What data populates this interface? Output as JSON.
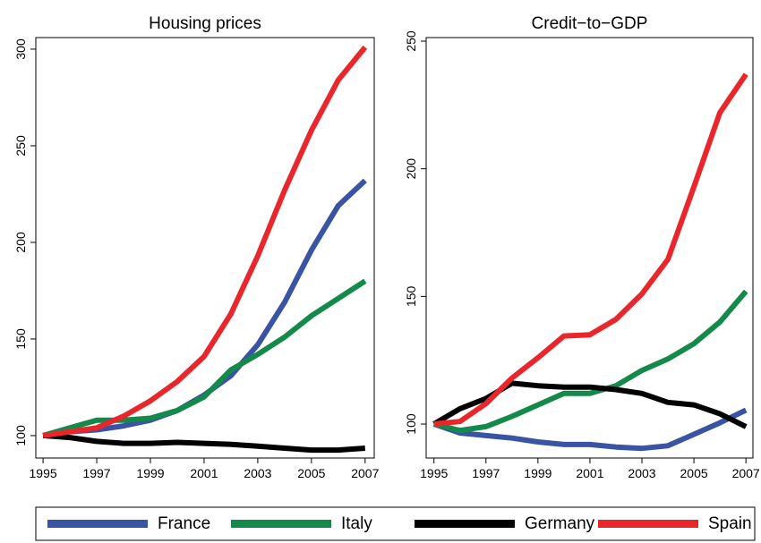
{
  "chart_data": [
    {
      "type": "line",
      "title": "Housing prices",
      "x": [
        1995,
        1996,
        1997,
        1998,
        1999,
        2000,
        2001,
        2002,
        2003,
        2004,
        2005,
        2006,
        2007
      ],
      "xlim": [
        1994.73,
        2007.34
      ],
      "xticks": [
        1995,
        1997,
        1999,
        2001,
        2003,
        2005,
        2007
      ],
      "ylim": [
        88.4,
        306
      ],
      "yticks": [
        100,
        150,
        200,
        250,
        300
      ],
      "series": [
        {
          "name": "France",
          "color": "#3a54a4",
          "values": [
            100,
            102,
            103,
            105,
            108,
            113,
            121,
            131,
            147,
            169,
            196,
            219,
            232
          ]
        },
        {
          "name": "Italy",
          "color": "#138a4a",
          "values": [
            100,
            104,
            108,
            108,
            109,
            113,
            120,
            134,
            142,
            151,
            162,
            171,
            180
          ]
        },
        {
          "name": "Germany",
          "color": "#000000",
          "values": [
            100,
            99,
            97,
            96,
            96,
            96.5,
            96,
            95.5,
            94.5,
            93.5,
            92.5,
            92.5,
            93.5
          ]
        },
        {
          "name": "Spain",
          "color": "#e8262b",
          "values": [
            100,
            102,
            104,
            110,
            118,
            128,
            141,
            163,
            193,
            227,
            258,
            284,
            301
          ]
        }
      ]
    },
    {
      "type": "line",
      "title": "Credit−to−GDP",
      "x": [
        1995,
        1996,
        1997,
        1998,
        1999,
        2000,
        2001,
        2002,
        2003,
        2004,
        2005,
        2006,
        2007
      ],
      "xlim": [
        1994.7,
        2007.27
      ],
      "xticks": [
        1995,
        1997,
        1999,
        2001,
        2003,
        2005,
        2007
      ],
      "ylim": [
        86.7,
        251.4
      ],
      "yticks": [
        100,
        150,
        200,
        250
      ],
      "series": [
        {
          "name": "France",
          "color": "#3a54a4",
          "values": [
            100,
            96.5,
            95.5,
            94.5,
            93,
            92,
            92,
            91,
            90.5,
            91.5,
            96,
            100.5,
            105.5
          ]
        },
        {
          "name": "Italy",
          "color": "#138a4a",
          "values": [
            100,
            97.5,
            99,
            103,
            107.5,
            112,
            112,
            115,
            121,
            125.5,
            131.5,
            140,
            152
          ]
        },
        {
          "name": "Germany",
          "color": "#000000",
          "values": [
            100,
            106,
            110,
            116,
            115,
            114.5,
            114.5,
            113.5,
            112,
            108.5,
            107.5,
            104,
            99
          ]
        },
        {
          "name": "Spain",
          "color": "#e8262b",
          "values": [
            100,
            101,
            108,
            118,
            126,
            134.5,
            135,
            141,
            151,
            164.5,
            193,
            222,
            237
          ]
        }
      ]
    }
  ]
}
